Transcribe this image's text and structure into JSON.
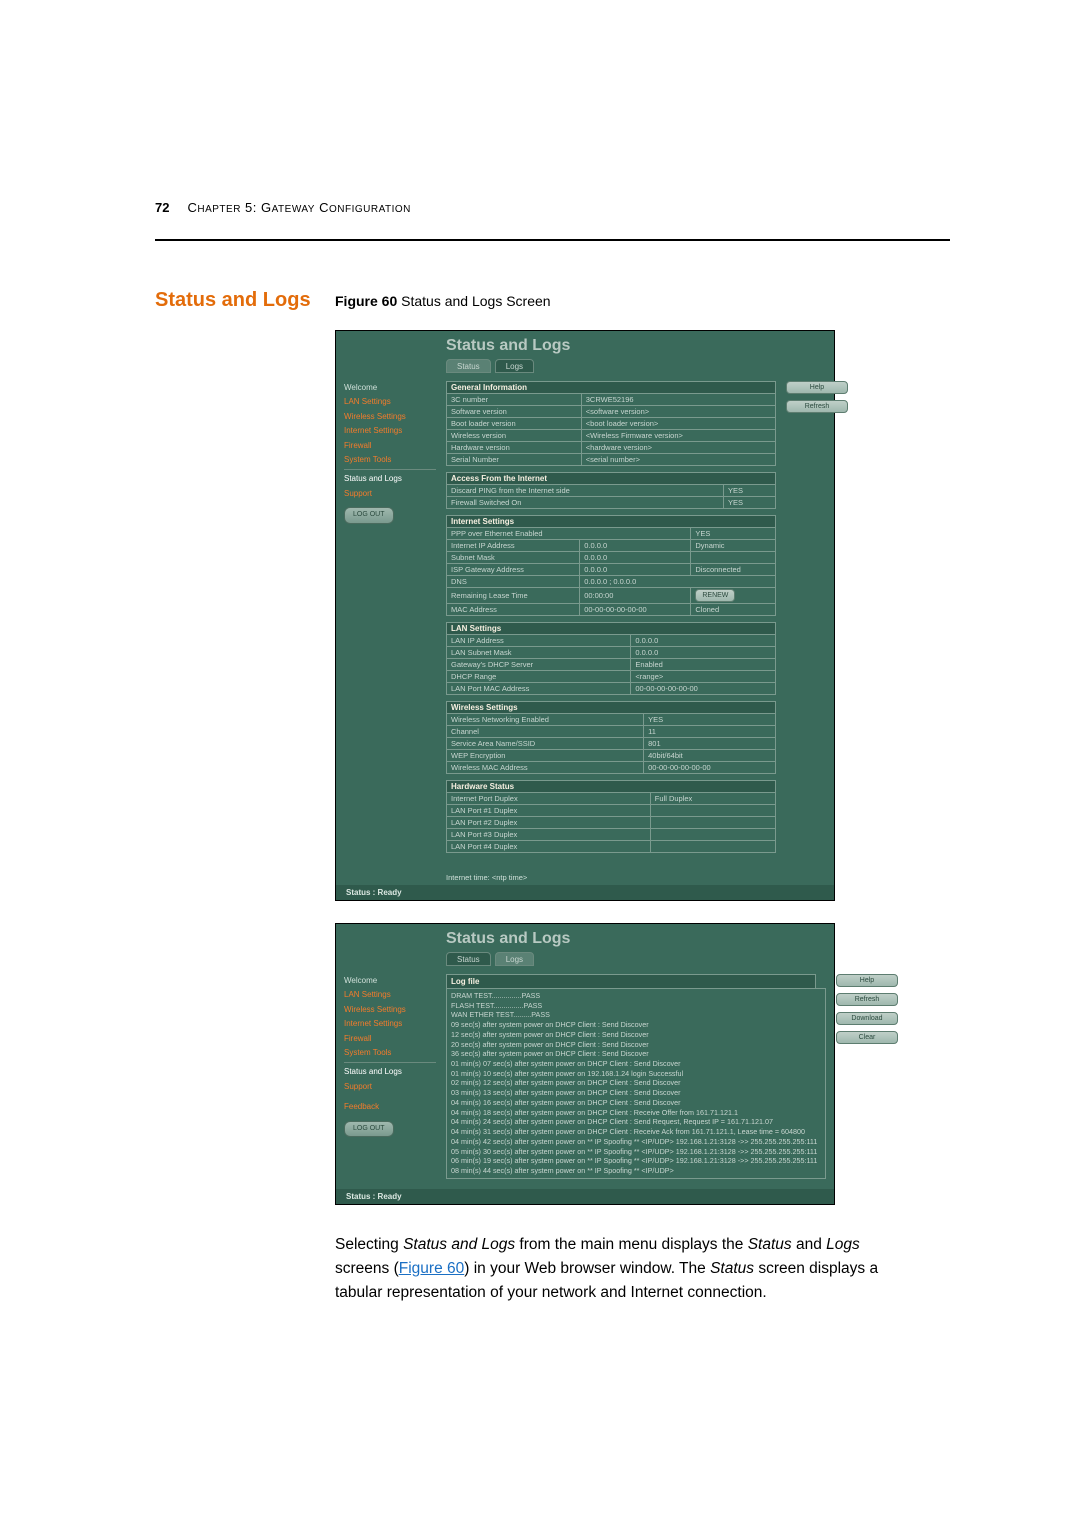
{
  "page": {
    "number": "72",
    "chapter_prefix": "C",
    "chapter_small": "HAPTER",
    "chapter_num": " 5: G",
    "chapter_small2": "ATEWAY",
    "chapter_rest": " C",
    "chapter_small3": "ONFIGURATION"
  },
  "section": {
    "title": "Status and Logs",
    "figure_num": "Figure 60",
    "figure_caption": "   Status and Logs Screen"
  },
  "panel": {
    "title": "Status and Logs",
    "tab_status": "Status",
    "tab_logs": "Logs",
    "status_bar": "Status : Ready",
    "ntp_line": "Internet time:      <ntp time>"
  },
  "sidebar": {
    "welcome": "Welcome",
    "lan": "LAN Settings",
    "wireless": "Wireless Settings",
    "internet": "Internet Settings",
    "firewall": "Firewall",
    "tools": "System Tools",
    "status": "Status and Logs",
    "support": "Support",
    "feedback": "Feedback",
    "logout": "LOG OUT"
  },
  "buttons": {
    "help": "Help",
    "refresh": "Refresh",
    "download": "Download",
    "clear": "Clear",
    "renew": "RENEW"
  },
  "tables": {
    "general": {
      "head": "General Information",
      "rows": [
        [
          "3C number",
          "3CRWE52196",
          ""
        ],
        [
          "Software version",
          "<software version>",
          ""
        ],
        [
          "Boot loader version",
          "<boot loader version>",
          ""
        ],
        [
          "Wireless version",
          "<Wireless Firmware version>",
          ""
        ],
        [
          "Hardware version",
          "<hardware version>",
          ""
        ],
        [
          "Serial Number",
          "<serial number>",
          ""
        ]
      ]
    },
    "access": {
      "head": "Access From the Internet",
      "rows": [
        [
          "Discard PING from the Internet side",
          "",
          "YES"
        ],
        [
          "Firewall Switched On",
          "",
          "YES"
        ]
      ]
    },
    "internet": {
      "head": "Internet Settings",
      "rows": [
        [
          "PPP over Ethernet Enabled",
          "",
          "YES"
        ],
        [
          "Internet IP Address",
          "0.0.0.0",
          "Dynamic"
        ],
        [
          "Subnet Mask",
          "0.0.0.0",
          ""
        ],
        [
          "ISP Gateway Address",
          "0.0.0.0",
          "Disconnected"
        ],
        [
          "DNS",
          "0.0.0.0 ; 0.0.0.0",
          ""
        ],
        [
          "Remaining Lease Time",
          "00:00:00",
          "RENEW_BTN"
        ],
        [
          "MAC Address",
          "00-00-00-00-00-00",
          "Cloned"
        ]
      ]
    },
    "lan": {
      "head": "LAN Settings",
      "rows": [
        [
          "LAN IP Address",
          "0.0.0.0",
          ""
        ],
        [
          "LAN Subnet Mask",
          "0.0.0.0",
          ""
        ],
        [
          "Gateway's DHCP Server",
          "",
          "Enabled"
        ],
        [
          "DHCP Range",
          "<range>",
          ""
        ],
        [
          "LAN Port MAC Address",
          "00-00-00-00-00-00",
          ""
        ]
      ]
    },
    "wireless": {
      "head": "Wireless Settings",
      "rows": [
        [
          "Wireless Networking Enabled",
          "",
          "YES"
        ],
        [
          "Channel",
          "11",
          ""
        ],
        [
          "Service Area Name/SSID",
          "801",
          ""
        ],
        [
          "WEP Encryption",
          "",
          "40bit/64bit"
        ],
        [
          "Wireless MAC Address",
          "00-00-00-00-00-00",
          ""
        ]
      ]
    },
    "hardware": {
      "head": "Hardware Status",
      "rows": [
        [
          "Internet Port Duplex",
          "Full Duplex",
          ""
        ],
        [
          "LAN Port #1 Duplex",
          "",
          ""
        ],
        [
          "LAN Port #2 Duplex",
          "",
          ""
        ],
        [
          "LAN Port #3 Duplex",
          "",
          ""
        ],
        [
          "LAN Port #4 Duplex",
          "",
          ""
        ]
      ]
    }
  },
  "log": {
    "head": "Log file",
    "lines": [
      "DRAM TEST...............PASS",
      "FLASH TEST...............PASS",
      "WAN ETHER TEST.........PASS",
      "09 sec(s) after system power on DHCP Client : Send Discover",
      "12 sec(s) after system power on DHCP Client : Send Discover",
      "20 sec(s) after system power on DHCP Client : Send Discover",
      "36 sec(s) after system power on DHCP Client : Send Discover",
      "01 min(s) 07 sec(s) after system power on DHCP Client : Send Discover",
      "01 min(s) 10 sec(s) after system power on 192.168.1.24 login Successful",
      "02 min(s) 12 sec(s) after system power on DHCP Client : Send Discover",
      "03 min(s) 13 sec(s) after system power on DHCP Client : Send Discover",
      "04 min(s) 16 sec(s) after system power on DHCP Client : Send Discover",
      "04 min(s) 18 sec(s) after system power on DHCP Client : Receive Offer from 161.71.121.1",
      "04 min(s) 24 sec(s) after system power on DHCP Client : Send Request, Request IP = 161.71.121.07",
      "04 min(s) 31 sec(s) after system power on DHCP Client : Receive Ack from 161.71.121.1, Lease time = 604800",
      "04 min(s) 42 sec(s) after system power on ** IP Spoofing ** <IP/UDP> 192.168.1.21:3128 ->> 255.255.255.255:111",
      "05 min(s) 30 sec(s) after system power on ** IP Spoofing ** <IP/UDP> 192.168.1.21:3128 ->> 255.255.255.255:111",
      "06 min(s) 19 sec(s) after system power on ** IP Spoofing ** <IP/UDP> 192.168.1.21:3128 ->> 255.255.255.255:111",
      "08 min(s) 44 sec(s) after system power on ** IP Spoofing ** <IP/UDP>"
    ]
  },
  "body": {
    "text1": "Selecting ",
    "em1": "Status and Logs",
    "text2": " from the main menu displays the ",
    "em2": "Status",
    "text3": " and ",
    "em3": "Logs",
    "text4": " screens (",
    "link": "Figure 60",
    "text5": ") in your Web browser window. The ",
    "em4": "Status",
    "text6": " screen displays a tabular representation of your network and Internet connection."
  },
  "colors": {
    "accent": "#e36c0a",
    "panel_bg": "#3a6a5b",
    "panel_dark": "#2f5a4c",
    "link": "#1a6fc4"
  }
}
